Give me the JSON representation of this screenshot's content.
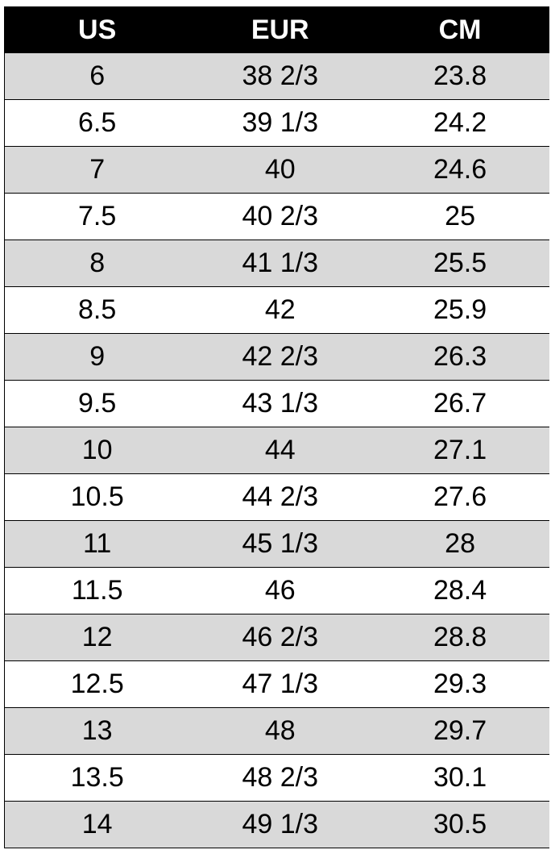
{
  "table": {
    "headers": [
      "US",
      "EUR",
      "CM"
    ],
    "rows": [
      [
        "6",
        "38 2/3",
        "23.8"
      ],
      [
        "6.5",
        "39 1/3",
        "24.2"
      ],
      [
        "7",
        "40",
        "24.6"
      ],
      [
        "7.5",
        "40 2/3",
        "25"
      ],
      [
        "8",
        "41 1/3",
        "25.5"
      ],
      [
        "8.5",
        "42",
        "25.9"
      ],
      [
        "9",
        "42 2/3",
        "26.3"
      ],
      [
        "9.5",
        "43 1/3",
        "26.7"
      ],
      [
        "10",
        "44",
        "27.1"
      ],
      [
        "10.5",
        "44 2/3",
        "27.6"
      ],
      [
        "11",
        "45 1/3",
        "28"
      ],
      [
        "11.5",
        "46",
        "28.4"
      ],
      [
        "12",
        "46 2/3",
        "28.8"
      ],
      [
        "12.5",
        "47 1/3",
        "29.3"
      ],
      [
        "13",
        "48",
        "29.7"
      ],
      [
        "13.5",
        "48 2/3",
        "30.1"
      ],
      [
        "14",
        "49 1/3",
        "30.5"
      ]
    ]
  },
  "colors": {
    "header_bg": "#000000",
    "header_text": "#ffffff",
    "stripe": "#d9d9d9"
  }
}
